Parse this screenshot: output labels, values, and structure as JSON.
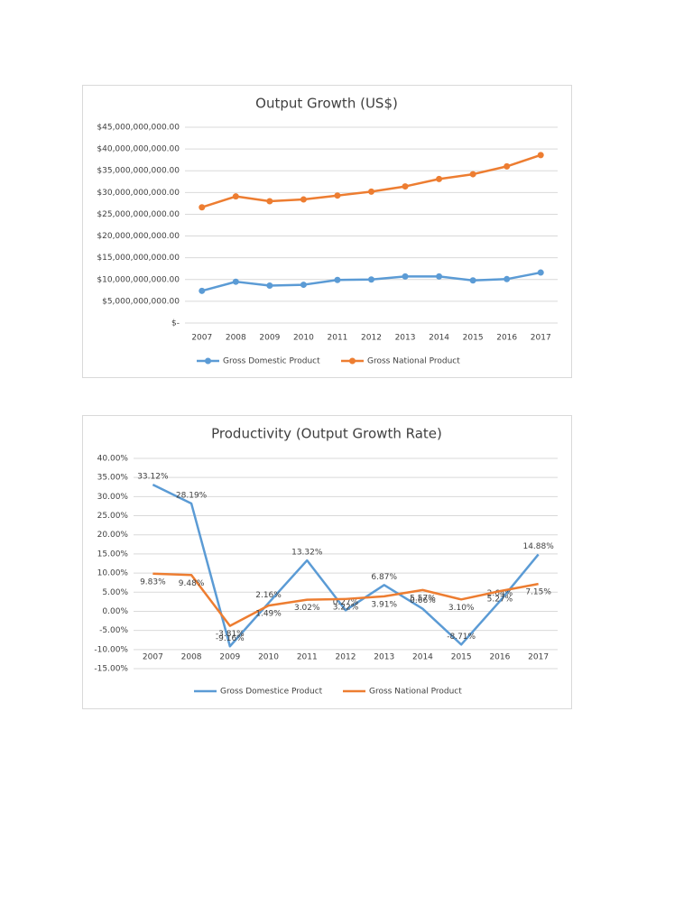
{
  "chart_data": [
    {
      "type": "line",
      "title": "Output Growth (US$)",
      "categories": [
        "2007",
        "2008",
        "2009",
        "2010",
        "2011",
        "2012",
        "2013",
        "2014",
        "2015",
        "2016",
        "2017"
      ],
      "markers": true,
      "series": [
        {
          "name": "Gross Domestic Product",
          "color": "#5b9bd5",
          "values": [
            7400000000,
            9500000000,
            8600000000,
            8800000000,
            9900000000,
            10000000000,
            10700000000,
            10700000000,
            9800000000,
            10100000000,
            11600000000
          ]
        },
        {
          "name": "Gross National Product",
          "color": "#ed7d31",
          "values": [
            26600000000,
            29100000000,
            28000000000,
            28400000000,
            29300000000,
            30200000000,
            31400000000,
            33100000000,
            34200000000,
            36000000000,
            38600000000
          ]
        }
      ],
      "ylim": [
        0,
        45000000000
      ],
      "yticks": [
        {
          "value": 0,
          "label": "$-"
        },
        {
          "value": 5000000000,
          "label": "$5,000,000,000.00"
        },
        {
          "value": 10000000000,
          "label": "$10,000,000,000.00"
        },
        {
          "value": 15000000000,
          "label": "$15,000,000,000.00"
        },
        {
          "value": 20000000000,
          "label": "$20,000,000,000.00"
        },
        {
          "value": 25000000000,
          "label": "$25,000,000,000.00"
        },
        {
          "value": 30000000000,
          "label": "$30,000,000,000.00"
        },
        {
          "value": 35000000000,
          "label": "$35,000,000,000.00"
        },
        {
          "value": 40000000000,
          "label": "$40,000,000,000.00"
        },
        {
          "value": 45000000000,
          "label": "$45,000,000,000.00"
        }
      ],
      "grid": true,
      "legend": "bottom"
    },
    {
      "type": "line",
      "title": "Productivity (Output Growth Rate)",
      "categories": [
        "2007",
        "2008",
        "2009",
        "2010",
        "2011",
        "2012",
        "2013",
        "2014",
        "2015",
        "2016",
        "2017"
      ],
      "markers": false,
      "series": [
        {
          "name": "Gross Domestice Product",
          "color": "#5b9bd5",
          "values": [
            33.12,
            28.19,
            -9.16,
            2.16,
            13.32,
            0.27,
            6.87,
            0.66,
            -8.71,
            2.64,
            14.88
          ],
          "value_labels": [
            "33.12%",
            "28.19%",
            "-9.16%",
            "2.16%",
            "13.32%",
            "0.27%",
            "6.87%",
            "0.66%",
            "-8.71%",
            "2.64%",
            "14.88%"
          ]
        },
        {
          "name": "Gross National Product",
          "color": "#ed7d31",
          "values": [
            9.83,
            9.48,
            -3.81,
            1.49,
            3.02,
            3.22,
            3.91,
            5.57,
            3.1,
            5.27,
            7.15
          ],
          "value_labels": [
            "9.83%",
            "9.48%",
            "-3.81%",
            "1.49%",
            "3.02%",
            "3.22%",
            "3.91%",
            "5.57%",
            "3.10%",
            "5.27%",
            "7.15%"
          ]
        }
      ],
      "ylim": [
        -15,
        40
      ],
      "yticks": [
        {
          "value": -15,
          "label": "-15.00%"
        },
        {
          "value": -10,
          "label": "-10.00%"
        },
        {
          "value": -5,
          "label": "-5.00%"
        },
        {
          "value": 0,
          "label": "0.00%"
        },
        {
          "value": 5,
          "label": "5.00%"
        },
        {
          "value": 10,
          "label": "10.00%"
        },
        {
          "value": 15,
          "label": "15.00%"
        },
        {
          "value": 20,
          "label": "20.00%"
        },
        {
          "value": 25,
          "label": "25.00%"
        },
        {
          "value": 30,
          "label": "30.00%"
        },
        {
          "value": 35,
          "label": "35.00%"
        },
        {
          "value": 40,
          "label": "40.00%"
        }
      ],
      "grid": true,
      "legend": "bottom"
    }
  ]
}
